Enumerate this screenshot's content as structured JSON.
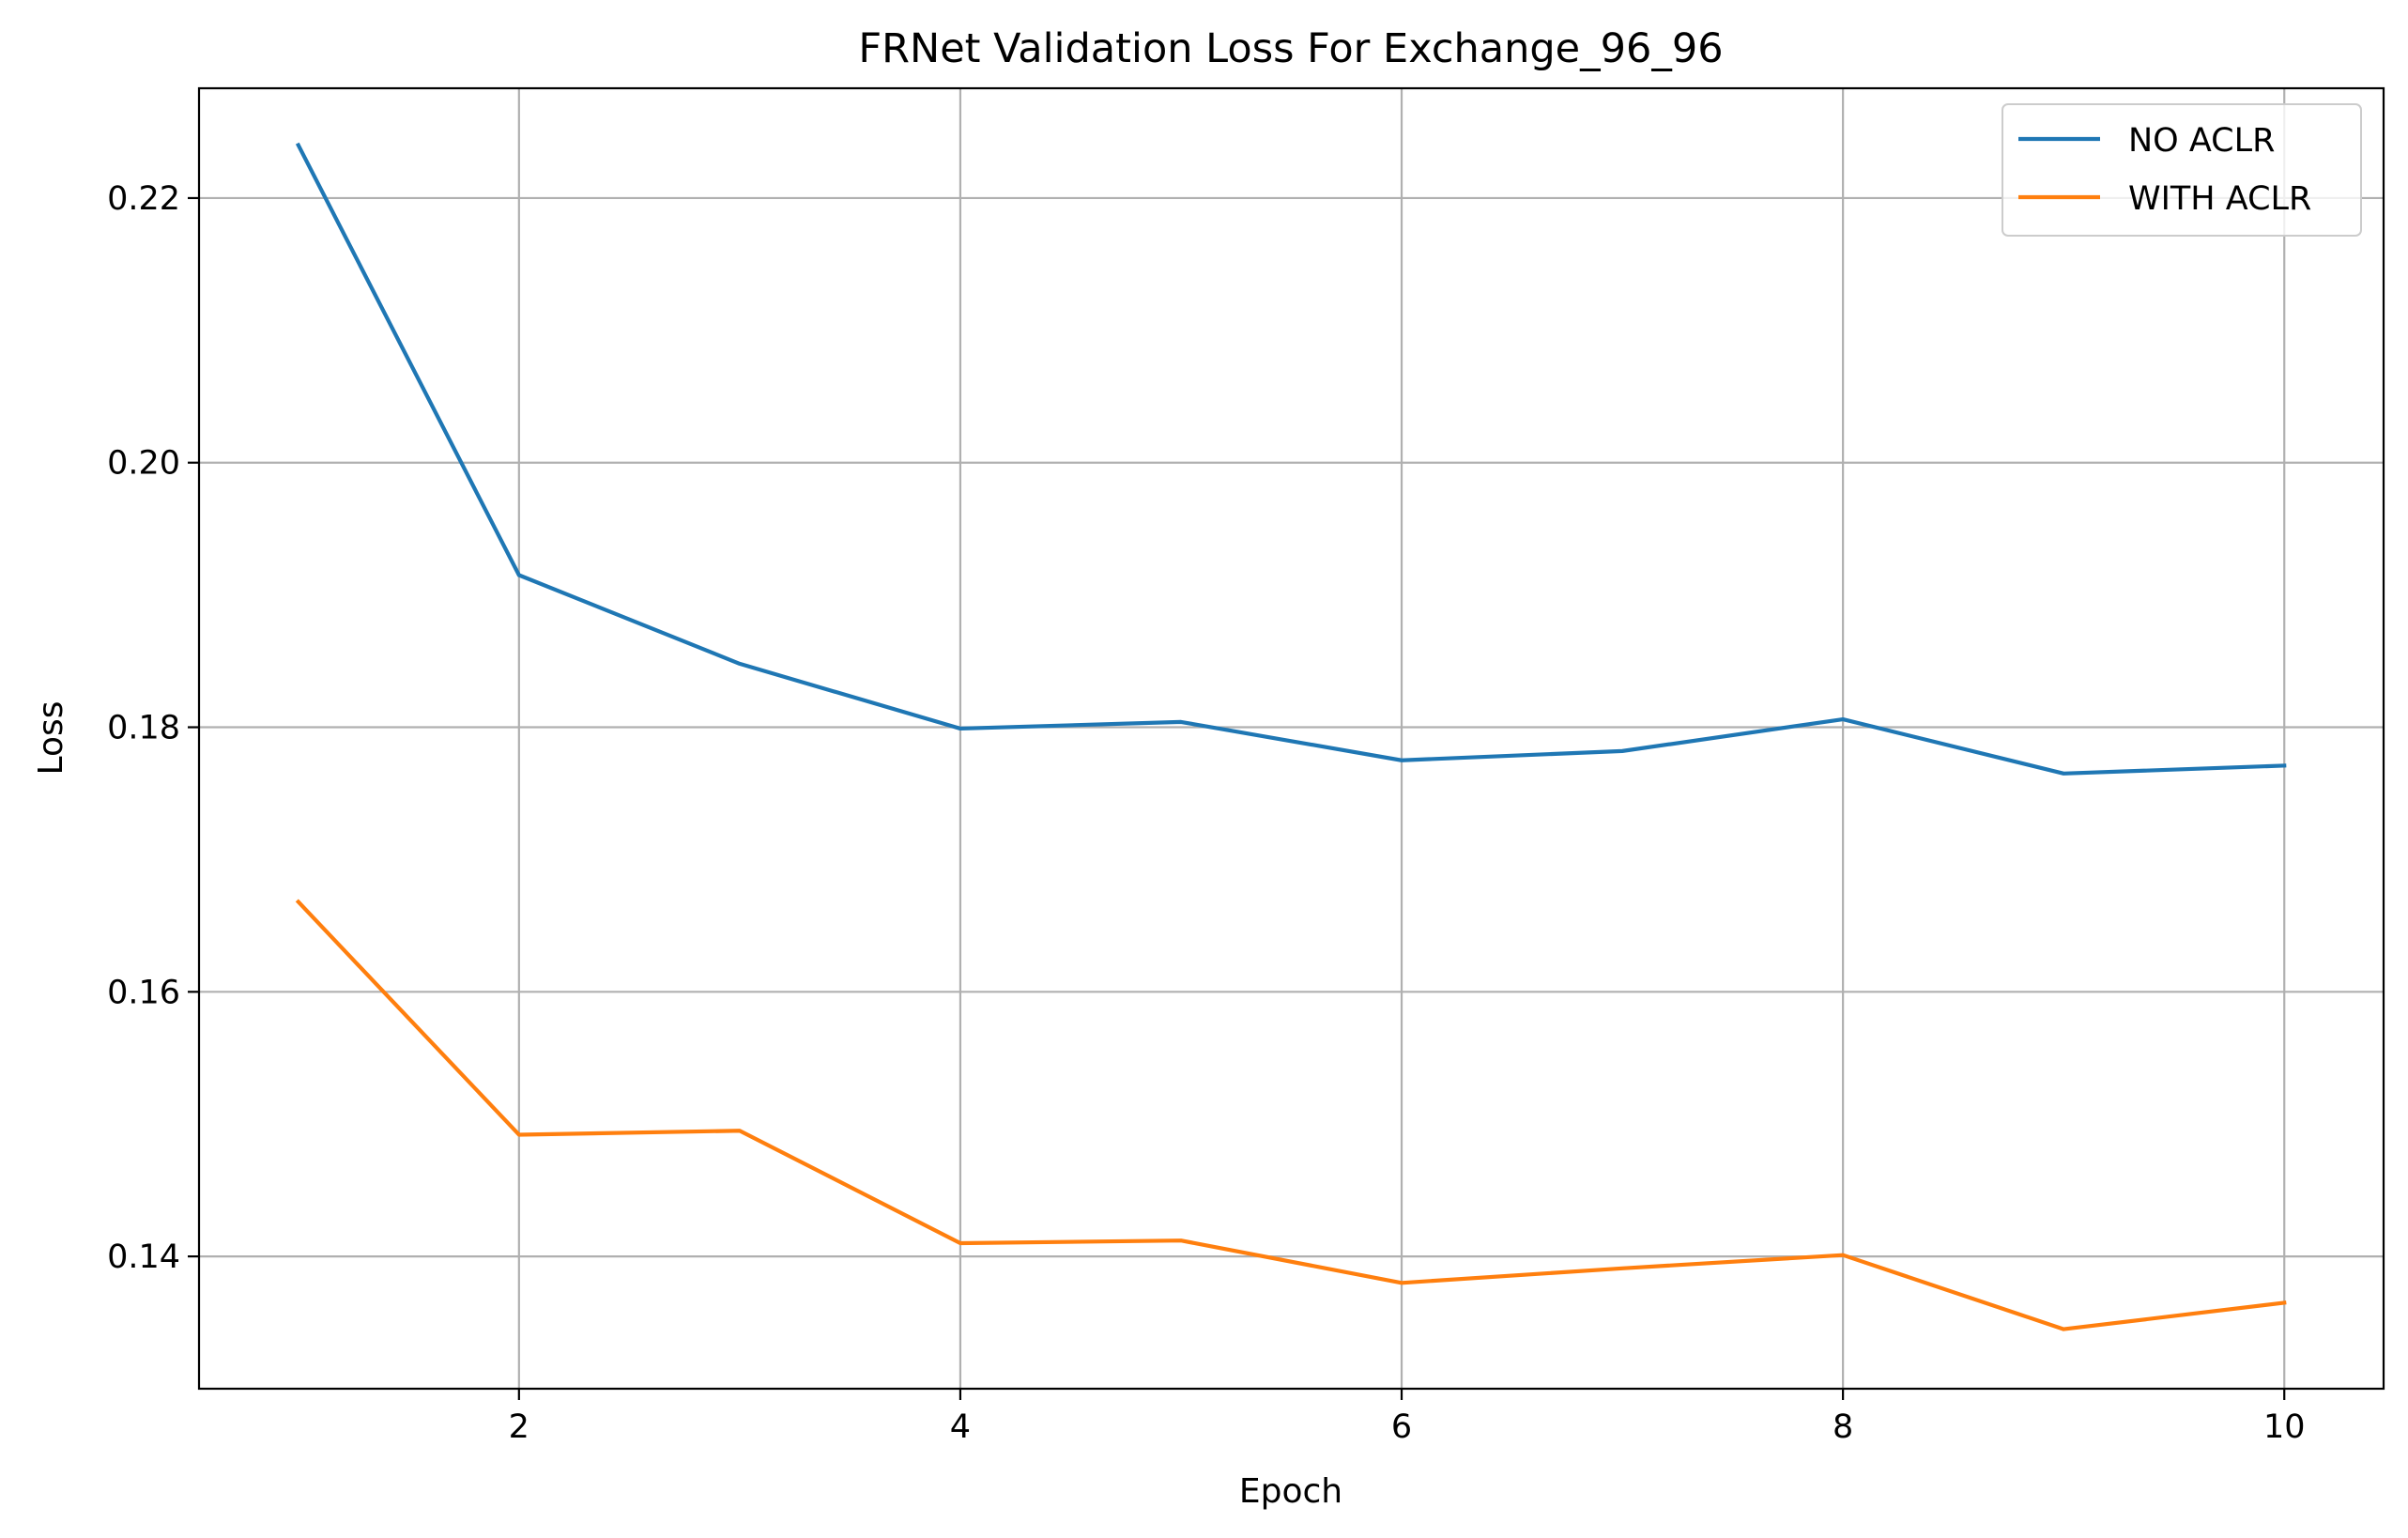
{
  "chart_data": {
    "type": "line",
    "title": "FRNet Validation Loss For Exchange_96_96",
    "xlabel": "Epoch",
    "ylabel": "Loss",
    "x": [
      1,
      2,
      3,
      4,
      5,
      6,
      7,
      8,
      9,
      10
    ],
    "xlim": [
      0.55,
      10.45
    ],
    "ylim": [
      0.13,
      0.2283
    ],
    "xticks": [
      2,
      4,
      6,
      8,
      10
    ],
    "xtick_labels": [
      "2",
      "4",
      "6",
      "8",
      "10"
    ],
    "yticks": [
      0.14,
      0.16,
      0.18,
      0.2,
      0.22
    ],
    "ytick_labels": [
      "0.14",
      "0.16",
      "0.18",
      "0.20",
      "0.22"
    ],
    "grid": true,
    "legend_position": "top-right",
    "series": [
      {
        "name": "NO ACLR",
        "color": "#1f77b4",
        "values": [
          0.224,
          0.1915,
          0.1848,
          0.1799,
          0.1804,
          0.1775,
          0.1782,
          0.1806,
          0.1765,
          0.1771
        ]
      },
      {
        "name": "WITH ACLR",
        "color": "#ff7f0e",
        "values": [
          0.1668,
          0.1492,
          0.1495,
          0.141,
          0.1412,
          0.138,
          0.1391,
          0.1401,
          0.1345,
          0.1365
        ]
      }
    ]
  }
}
